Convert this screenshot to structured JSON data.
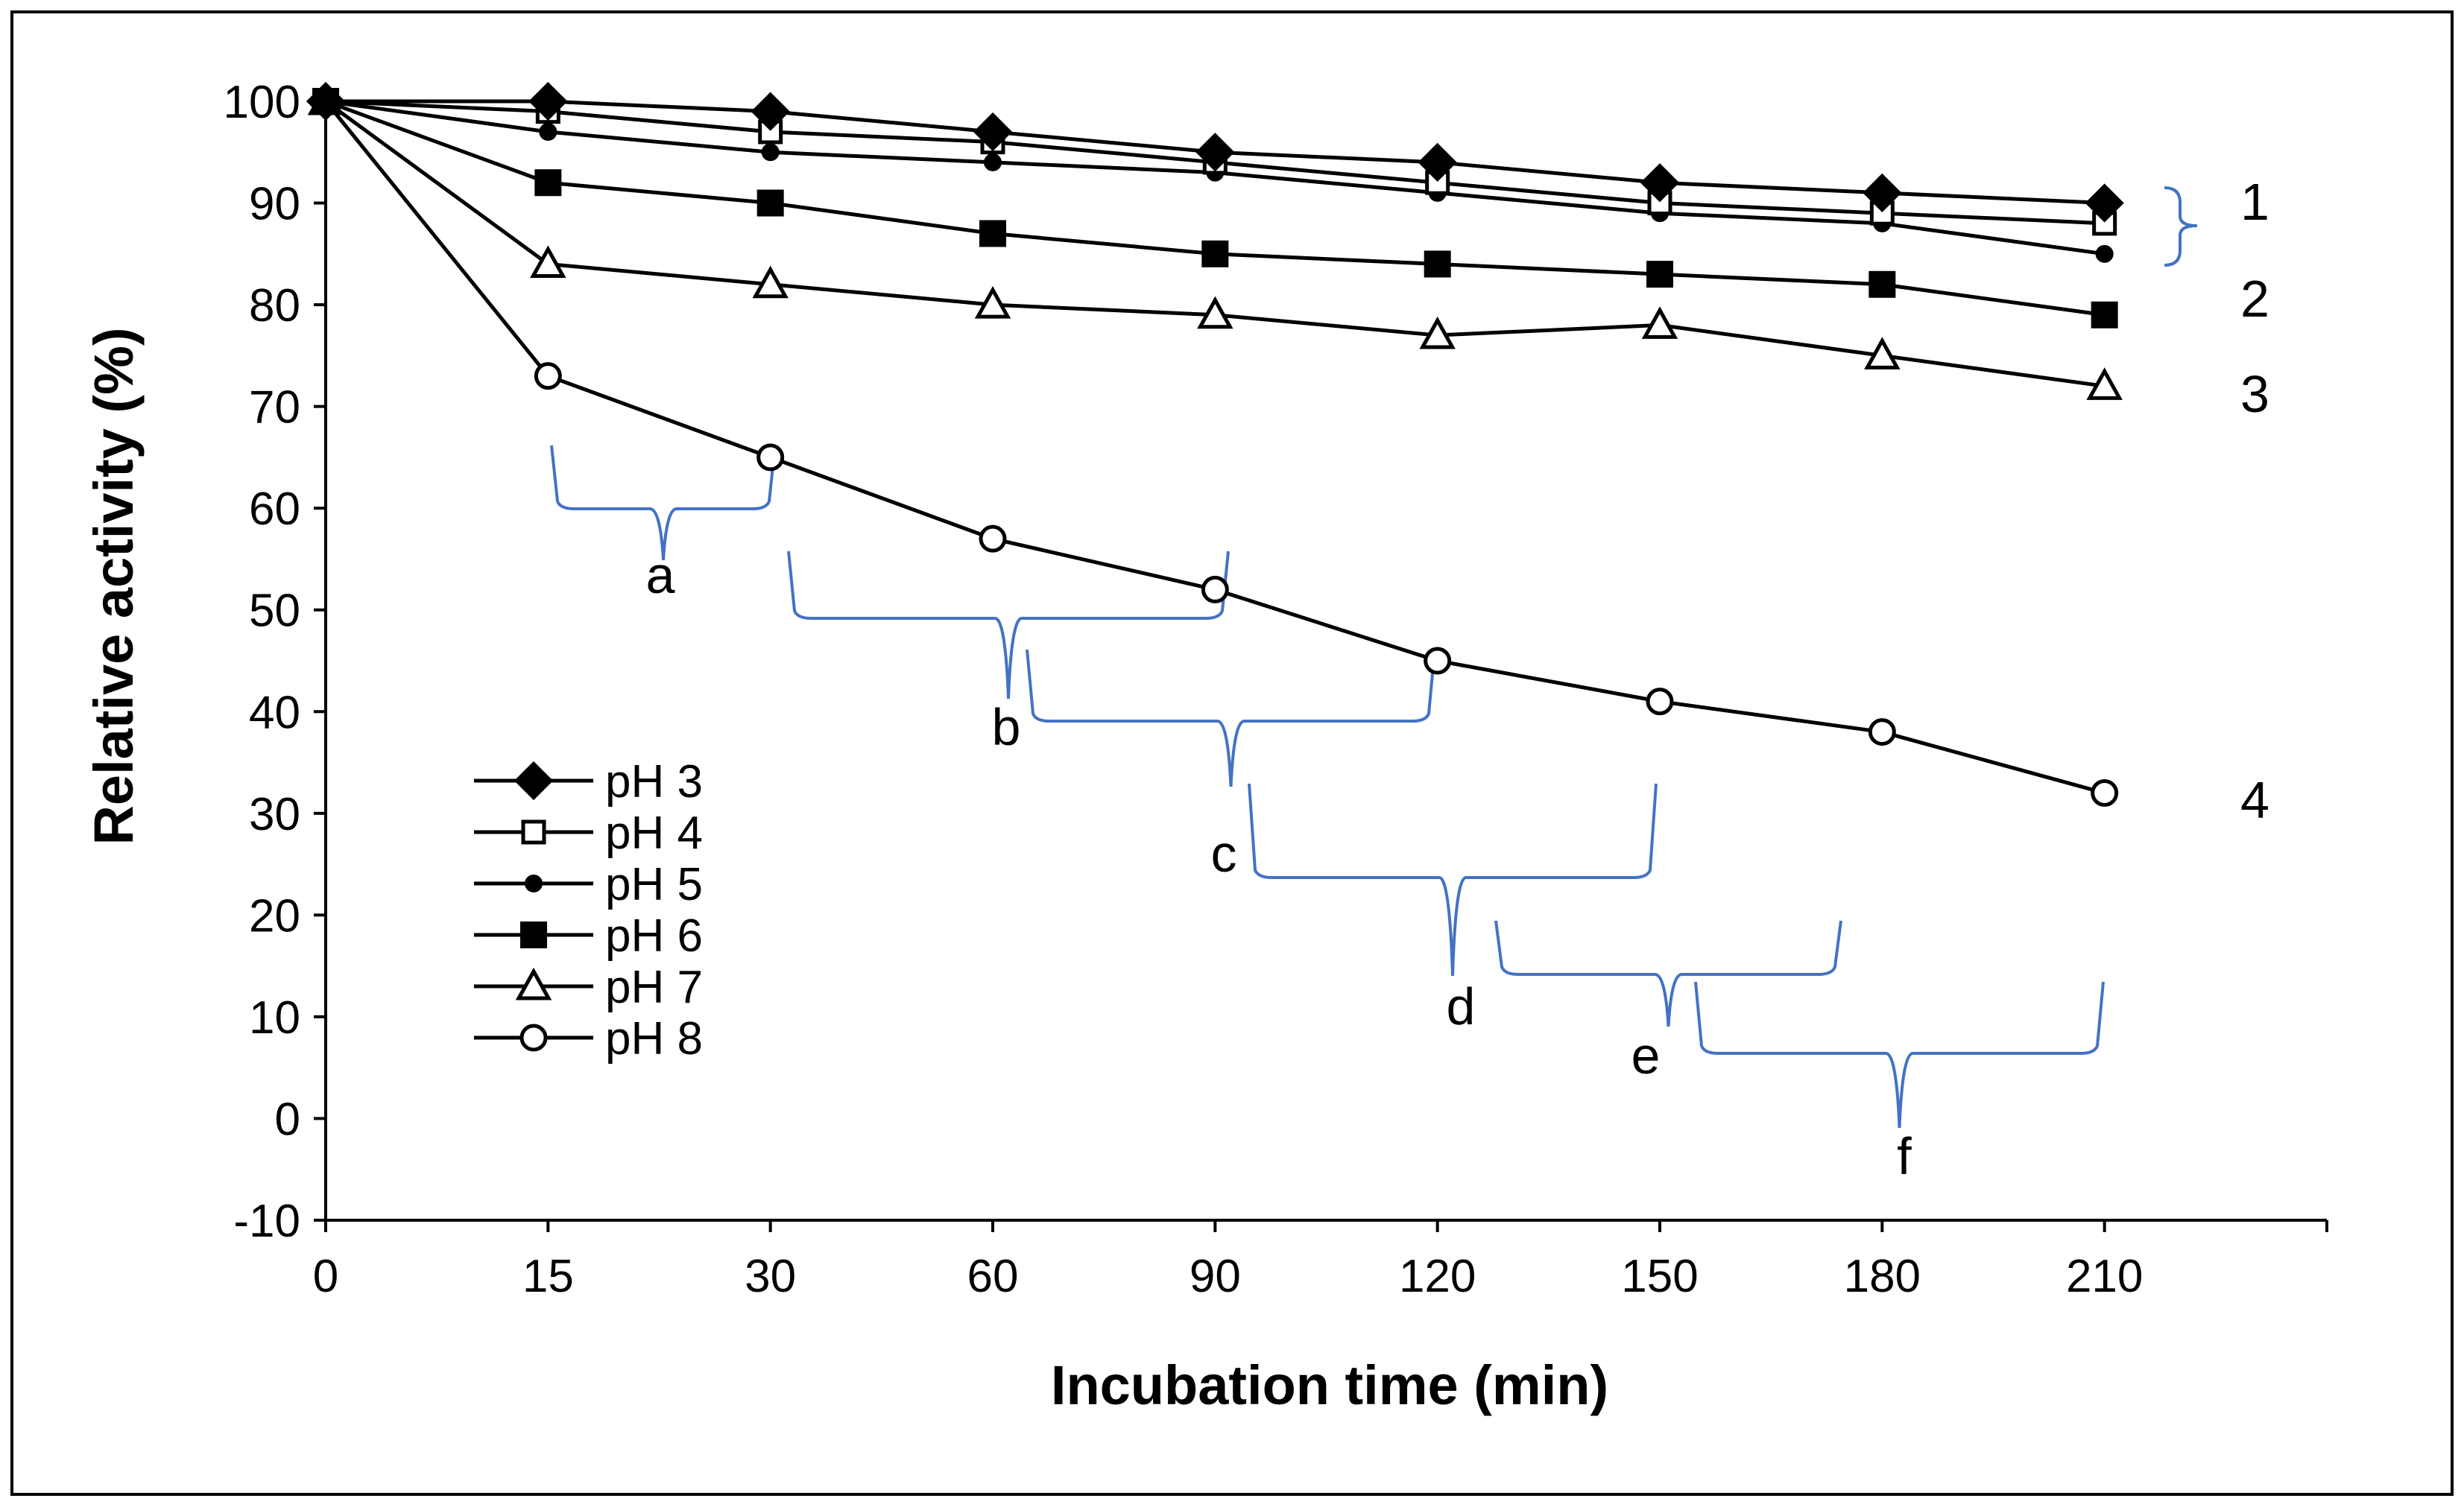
{
  "colors": {
    "series_line": "#000000",
    "bracket": "#4472C4",
    "background": "#ffffff",
    "frame": "#000000"
  },
  "chart_data": {
    "type": "line",
    "title": "",
    "xlabel": "Incubation time (min)",
    "ylabel": "Relative activity (%)",
    "categories": [
      "0",
      "15",
      "30",
      "60",
      "90",
      "120",
      "150",
      "180",
      "210"
    ],
    "ylim": [
      -10,
      100
    ],
    "yticks": [
      -10,
      0,
      10,
      20,
      30,
      40,
      50,
      60,
      70,
      80,
      90,
      100
    ],
    "grid": false,
    "legend_position": "bottom-left",
    "series": [
      {
        "name": "pH 3",
        "marker": "filled-diamond",
        "values": [
          100,
          100,
          99,
          97,
          95,
          94,
          92,
          91,
          90
        ]
      },
      {
        "name": "pH 4",
        "marker": "open-square",
        "values": [
          100,
          99,
          97,
          96,
          94,
          92,
          90,
          89,
          88
        ]
      },
      {
        "name": "pH 5",
        "marker": "small-filled-circle",
        "values": [
          100,
          97,
          95,
          94,
          93,
          91,
          89,
          88,
          85
        ]
      },
      {
        "name": "pH 6",
        "marker": "filled-square",
        "values": [
          100,
          92,
          90,
          87,
          85,
          84,
          83,
          82,
          79
        ]
      },
      {
        "name": "pH 7",
        "marker": "open-triangle",
        "values": [
          100,
          84,
          82,
          80,
          79,
          77,
          78,
          75,
          72
        ]
      },
      {
        "name": "pH 8",
        "marker": "open-circle",
        "values": [
          100,
          73,
          65,
          57,
          52,
          45,
          41,
          38,
          32
        ]
      }
    ],
    "group_labels": [
      "1",
      "2",
      "3",
      "4"
    ],
    "annotations": [
      {
        "label": "a",
        "from": "15",
        "to": "30"
      },
      {
        "label": "b",
        "from": "30",
        "to": "90"
      },
      {
        "label": "c",
        "from": "60",
        "to": "120"
      },
      {
        "label": "d",
        "from": "90",
        "to": "150"
      },
      {
        "label": "e",
        "from": "120",
        "to": "180"
      },
      {
        "label": "f",
        "from": "150",
        "to": "210"
      }
    ]
  }
}
